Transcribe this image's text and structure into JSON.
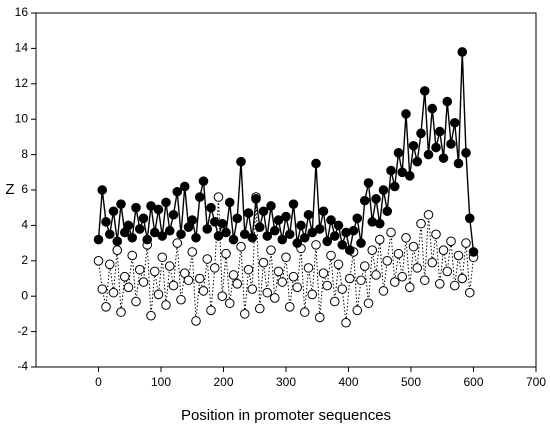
{
  "chart_data": {
    "type": "line",
    "x_label": "Position in promoter sequences",
    "y_label": "Z",
    "x": [
      0,
      6,
      12,
      18,
      24,
      30,
      36,
      42,
      48,
      54,
      60,
      66,
      72,
      78,
      84,
      90,
      96,
      102,
      108,
      114,
      120,
      126,
      132,
      138,
      144,
      150,
      156,
      162,
      168,
      174,
      180,
      186,
      192,
      198,
      204,
      210,
      216,
      222,
      228,
      234,
      240,
      246,
      252,
      258,
      264,
      270,
      276,
      282,
      288,
      294,
      300,
      306,
      312,
      318,
      324,
      330,
      336,
      342,
      348,
      354,
      360,
      366,
      372,
      378,
      384,
      390,
      396,
      402,
      408,
      414,
      420,
      426,
      432,
      438,
      444,
      450,
      456,
      462,
      468,
      474,
      480,
      486,
      492,
      498,
      504,
      510,
      516,
      522,
      528,
      534,
      540,
      546,
      552,
      558,
      564,
      570,
      576,
      582,
      588,
      594,
      600
    ],
    "series": [
      {
        "color": "#000000",
        "marker": "open",
        "linestyle": "dotted",
        "values": [
          2.0,
          0.4,
          -0.6,
          1.8,
          0.2,
          2.6,
          -0.9,
          1.1,
          0.5,
          2.3,
          -0.3,
          1.5,
          0.8,
          2.9,
          -1.1,
          1.4,
          0.1,
          2.2,
          -0.5,
          1.7,
          0.6,
          3.0,
          -0.2,
          1.3,
          0.9,
          2.5,
          -1.4,
          1.0,
          0.3,
          2.1,
          -0.8,
          1.6,
          5.6,
          0.0,
          2.4,
          -0.4,
          1.2,
          0.7,
          2.8,
          -1.0,
          1.5,
          0.4,
          5.6,
          -0.7,
          1.9,
          0.2,
          2.6,
          -0.1,
          1.4,
          0.8,
          2.2,
          -0.6,
          1.1,
          0.5,
          2.7,
          -0.9,
          1.6,
          0.1,
          2.9,
          -1.2,
          1.3,
          0.6,
          2.3,
          -0.3,
          1.8,
          0.4,
          -1.5,
          1.0,
          2.5,
          -0.8,
          0.9,
          1.7,
          -0.4,
          2.6,
          1.2,
          3.2,
          0.3,
          2.0,
          3.6,
          0.8,
          2.4,
          1.1,
          3.3,
          0.5,
          2.8,
          1.6,
          4.1,
          0.9,
          4.6,
          1.9,
          3.5,
          0.7,
          2.6,
          1.4,
          3.1,
          0.6,
          2.3,
          1.0,
          3.0,
          0.2,
          2.2
        ]
      },
      {
        "color": "#000000",
        "marker": "filled",
        "linestyle": "solid",
        "values": [
          3.2,
          6.0,
          4.2,
          3.5,
          4.8,
          3.1,
          5.2,
          3.6,
          4.0,
          3.3,
          5.0,
          3.8,
          4.4,
          3.2,
          5.1,
          3.6,
          4.9,
          3.4,
          5.3,
          3.7,
          4.6,
          5.9,
          3.5,
          6.2,
          3.9,
          4.3,
          3.3,
          5.6,
          6.5,
          3.8,
          5.0,
          4.2,
          3.4,
          4.1,
          3.6,
          5.3,
          3.2,
          4.4,
          7.6,
          3.5,
          4.7,
          3.3,
          5.5,
          3.9,
          4.8,
          3.4,
          5.1,
          3.7,
          4.3,
          3.2,
          4.5,
          3.5,
          5.2,
          3.0,
          4.0,
          3.3,
          4.6,
          3.6,
          7.5,
          3.8,
          4.8,
          3.1,
          4.3,
          3.4,
          4.0,
          2.9,
          3.6,
          2.6,
          3.7,
          4.4,
          3.0,
          5.4,
          6.4,
          4.2,
          5.5,
          4.1,
          6.0,
          4.8,
          7.1,
          6.2,
          8.1,
          7.0,
          10.3,
          6.8,
          8.5,
          7.6,
          9.2,
          11.6,
          8.0,
          10.6,
          8.4,
          9.3,
          7.8,
          11.0,
          8.6,
          9.8,
          7.5,
          13.8,
          8.1,
          4.4,
          2.5
        ]
      }
    ],
    "xlim": [
      -100,
      700
    ],
    "xticks": [
      0,
      100,
      200,
      300,
      400,
      500,
      600,
      700
    ],
    "ylim": [
      -4,
      16
    ],
    "yticks": [
      -4,
      -2,
      0,
      2,
      4,
      6,
      8,
      10,
      12,
      14,
      16
    ],
    "grid": false
  }
}
